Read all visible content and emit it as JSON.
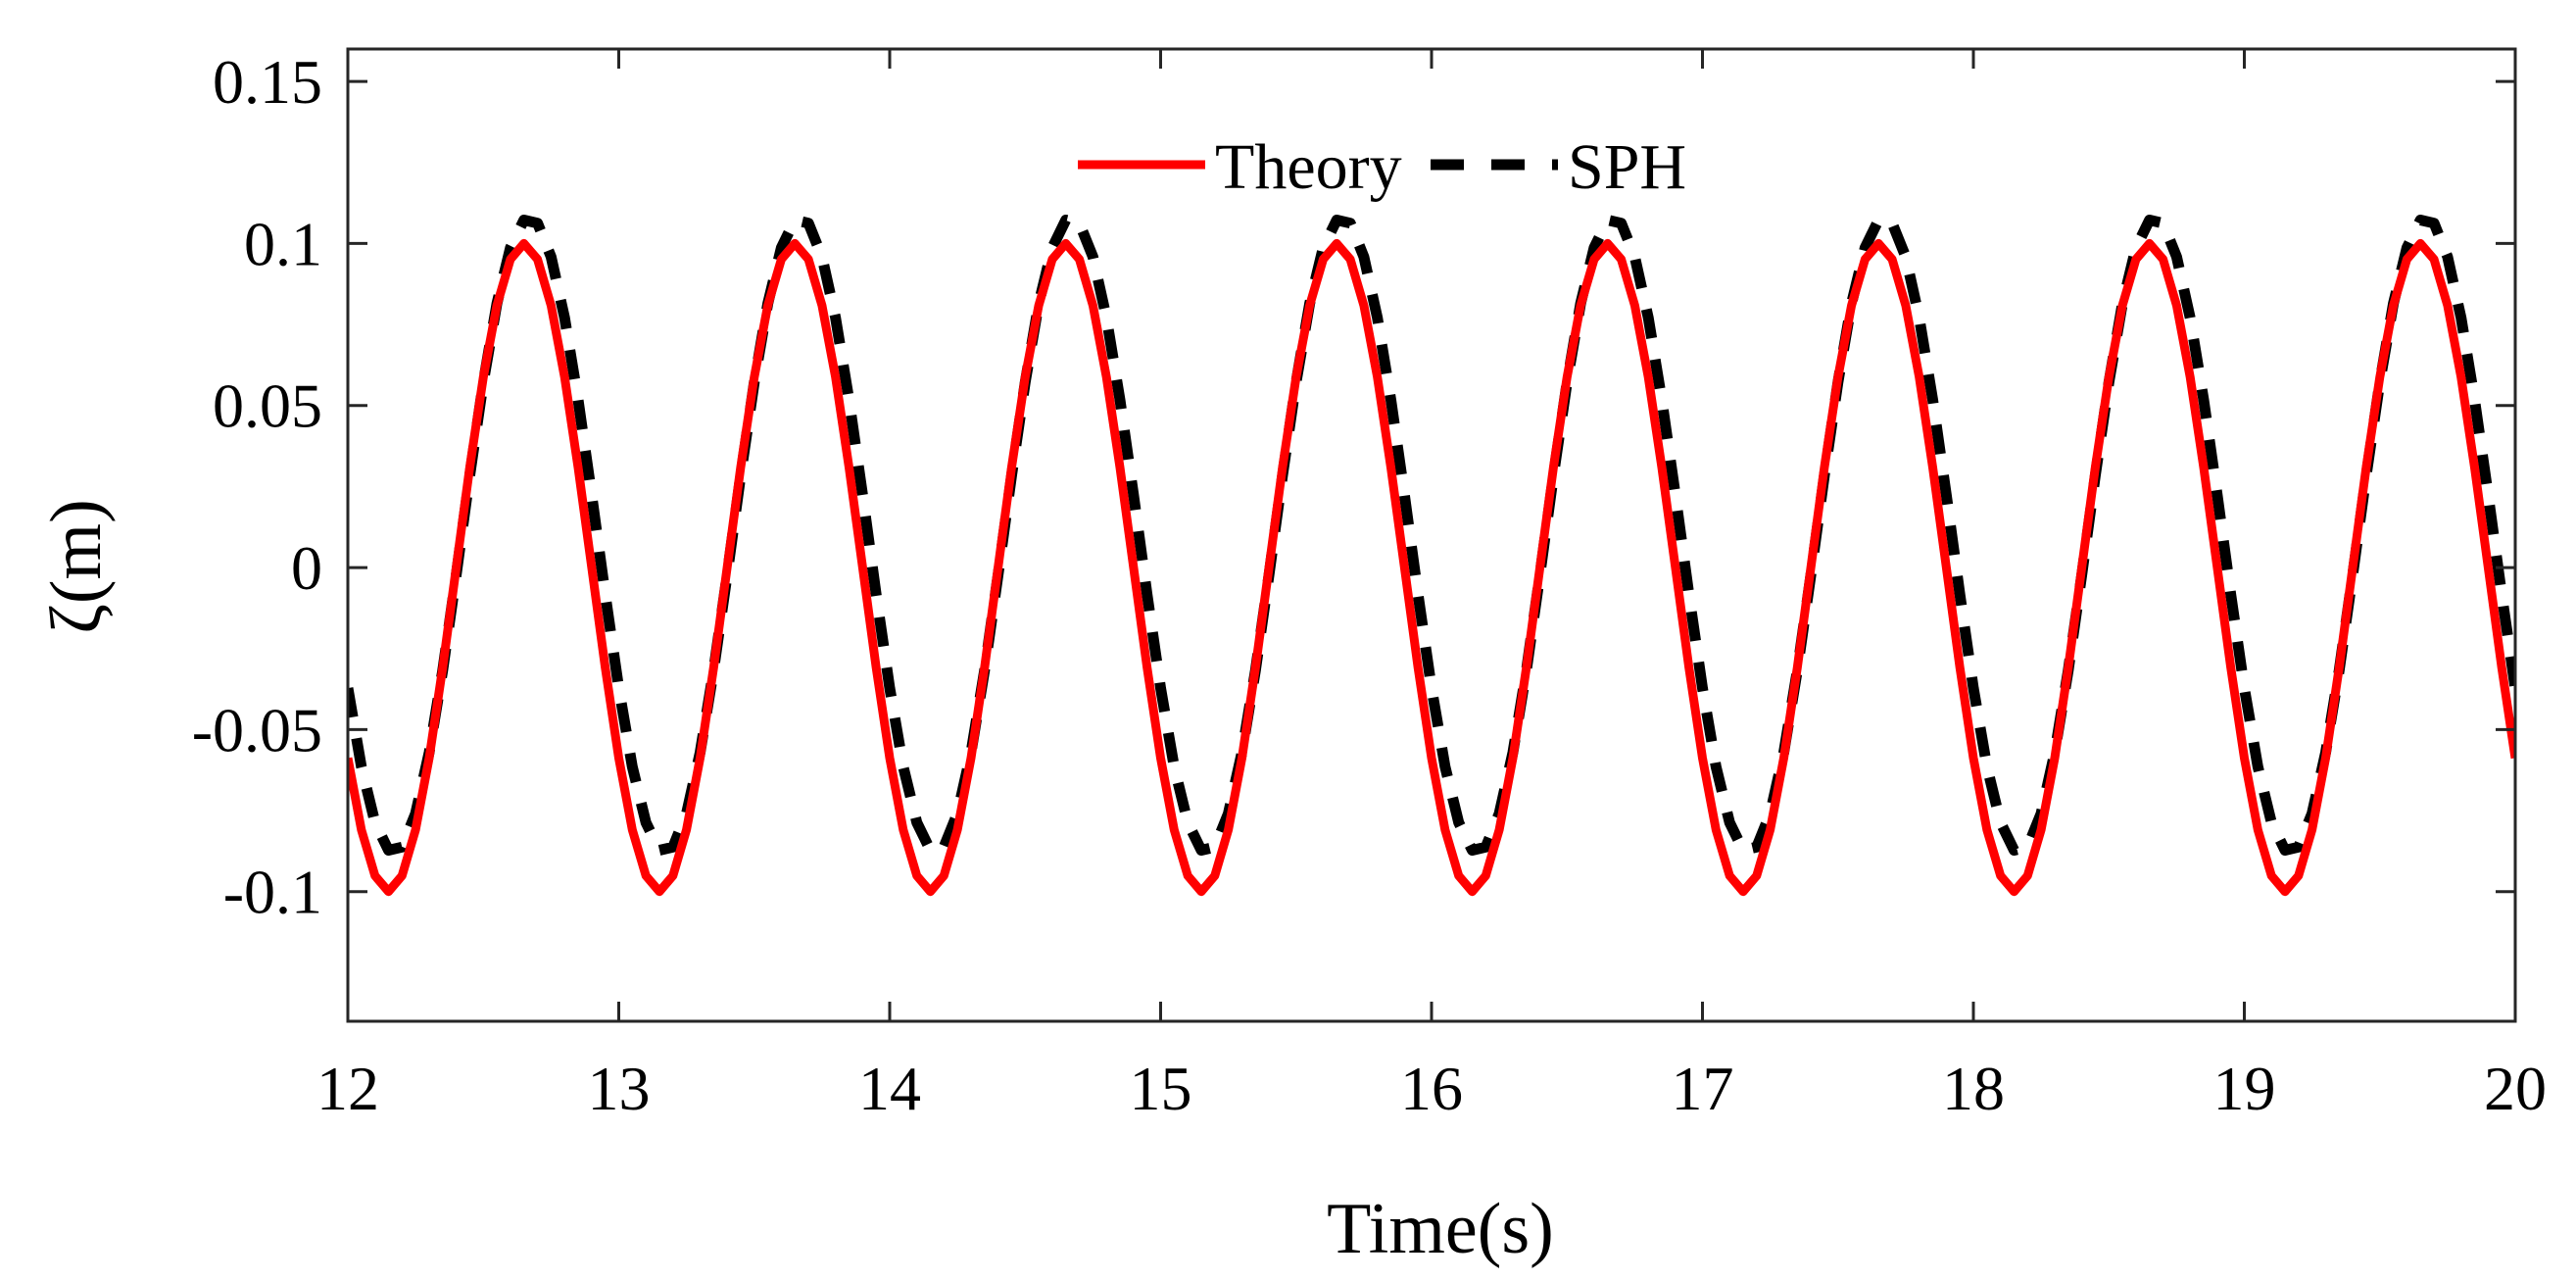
{
  "chart_data": {
    "type": "line",
    "title": "",
    "xlabel": "Time(s)",
    "ylabel": "ζ(m)",
    "xlim": [
      12,
      20
    ],
    "ylim": [
      -0.14,
      0.16
    ],
    "grid": false,
    "legend_position": "top-center",
    "x_ticks": [
      12,
      13,
      14,
      15,
      16,
      17,
      18,
      19,
      20
    ],
    "x_tick_labels": [
      "12",
      "13",
      "14",
      "15",
      "16",
      "17",
      "18",
      "19",
      "20"
    ],
    "y_ticks": [
      0.15,
      0.1,
      0.05,
      0,
      -0.05,
      -0.1
    ],
    "y_tick_labels": [
      "0.15",
      "0.1",
      "0.05",
      "0",
      "-0.05",
      "-0.1"
    ],
    "wave": {
      "period": 1.0,
      "crest_time": 12.65,
      "sample_step": 0.05
    },
    "series": [
      {
        "name": "Theory",
        "color": "#ff0000",
        "dash": "solid",
        "crest": 0.1,
        "trough": -0.1,
        "time_shift": 0.0
      },
      {
        "name": "SPH",
        "color": "#000000",
        "dash": "dashed",
        "crest": 0.108,
        "trough": -0.088,
        "time_shift": 0.02
      }
    ]
  }
}
